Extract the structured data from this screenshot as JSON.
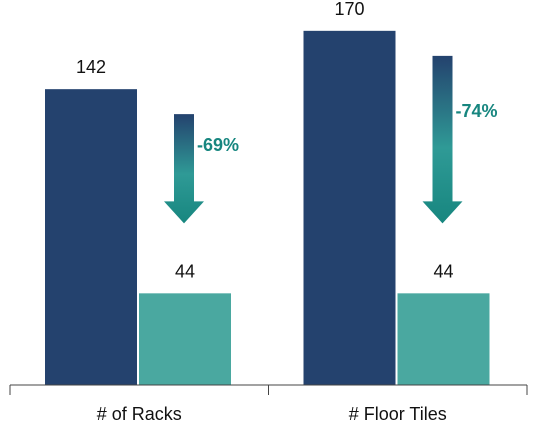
{
  "chart_data": {
    "type": "bar",
    "title": "",
    "xlabel": "",
    "ylabel": "",
    "ylim": [
      0,
      180
    ],
    "grid": false,
    "legend": "none",
    "categories": [
      "# of Racks",
      "# Floor Tiles"
    ],
    "series": [
      {
        "values": [
          142,
          170
        ],
        "color": "#24426e"
      },
      {
        "values": [
          44,
          44
        ],
        "color": "#4aa8a0"
      }
    ],
    "annotations": [
      {
        "category": "# of Racks",
        "label": "-69%"
      },
      {
        "category": "# Floor Tiles",
        "label": "-74%"
      }
    ]
  },
  "colors": {
    "arrow_top": "#24426e",
    "arrow_mid": "#2f9a96",
    "arrow_bottom": "#17867f",
    "change_text": "#17867f",
    "axis": "#444444"
  }
}
